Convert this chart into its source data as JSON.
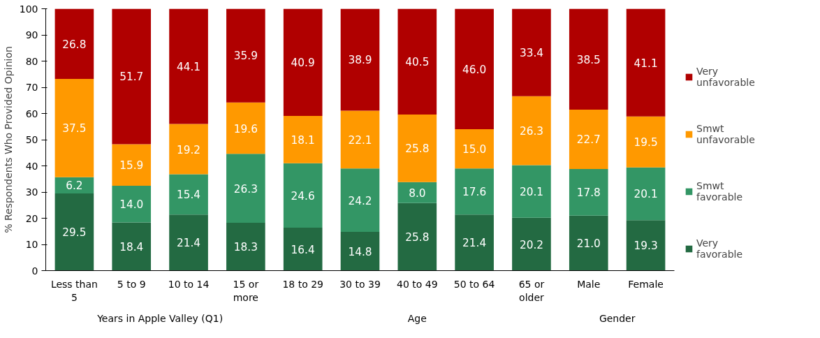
{
  "chart_data": {
    "type": "bar",
    "stacked": true,
    "ylabel": "% Respondents Who Provided Opinion",
    "categories": [
      "Less than 5",
      "5 to 9",
      "10 to 14",
      "15 or more",
      "18 to 29",
      "30 to 39",
      "40 to 49",
      "50 to 64",
      "65 or older",
      "Male",
      "Female"
    ],
    "series": [
      {
        "name": "Very favorable",
        "color": "#236a42",
        "values": [
          29.5,
          18.4,
          21.4,
          18.3,
          16.4,
          14.8,
          25.8,
          21.4,
          20.2,
          21.0,
          19.3
        ],
        "value_labels": [
          "29.5",
          "18.4",
          "21.4",
          "18.3",
          "16.4",
          "14.8",
          "25.8",
          "21.4",
          "20.2",
          "21.0",
          "19.3"
        ]
      },
      {
        "name": "Smwt favorable",
        "color": "#339665",
        "values": [
          6.2,
          14.0,
          15.4,
          26.3,
          24.6,
          24.2,
          8.0,
          17.6,
          20.1,
          17.8,
          20.1
        ],
        "value_labels": [
          "6.2",
          "14.0",
          "15.4",
          "26.3",
          "24.6",
          "24.2",
          "8.0",
          "17.6",
          "20.1",
          "17.8",
          "20.1"
        ]
      },
      {
        "name": "Smwt unfavorable",
        "color": "#ff9900",
        "values": [
          37.5,
          15.9,
          19.2,
          19.6,
          18.1,
          22.1,
          25.8,
          15.0,
          26.3,
          22.7,
          19.5
        ],
        "value_labels": [
          "37.5",
          "15.9",
          "19.2",
          "19.6",
          "18.1",
          "22.1",
          "25.8",
          "15.0",
          "26.3",
          "22.7",
          "19.5"
        ]
      },
      {
        "name": "Very unfavorable",
        "color": "#b00000",
        "values": [
          26.8,
          51.7,
          44.1,
          35.9,
          40.9,
          38.9,
          40.5,
          46.0,
          33.4,
          38.5,
          41.1
        ],
        "value_labels": [
          "26.8",
          "51.7",
          "44.1",
          "35.9",
          "40.9",
          "38.9",
          "40.5",
          "46.0",
          "33.4",
          "38.5",
          "41.1"
        ]
      }
    ],
    "annotations": [
      "Years in Apple Valley (Q1)",
      "Age",
      "Gender"
    ],
    "ylim": [
      0,
      100
    ],
    "yticks": [
      0,
      10,
      20,
      30,
      40,
      50,
      60,
      70,
      80,
      90,
      100
    ],
    "grid": false,
    "legend": "right"
  }
}
